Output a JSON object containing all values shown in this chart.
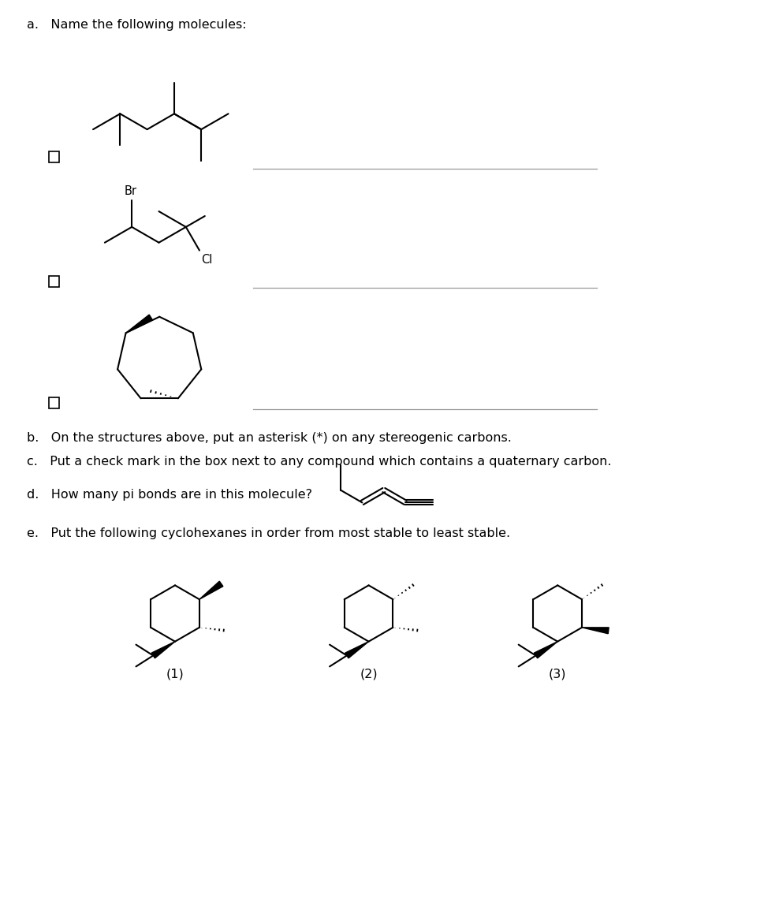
{
  "title_a": "a.   Name the following molecules:",
  "title_b": "b.   On the structures above, put an asterisk (*) on any stereogenic carbons.",
  "title_c": "c.   Put a check mark in the box next to any compound which contains a quaternary carbon.",
  "title_d": "d.   How many pi bonds are in this molecule?",
  "title_e": "e.   Put the following cyclohexanes in order from most stable to least stable.",
  "bg_color": "#ffffff",
  "line_color": "#000000",
  "font_size": 11.5
}
